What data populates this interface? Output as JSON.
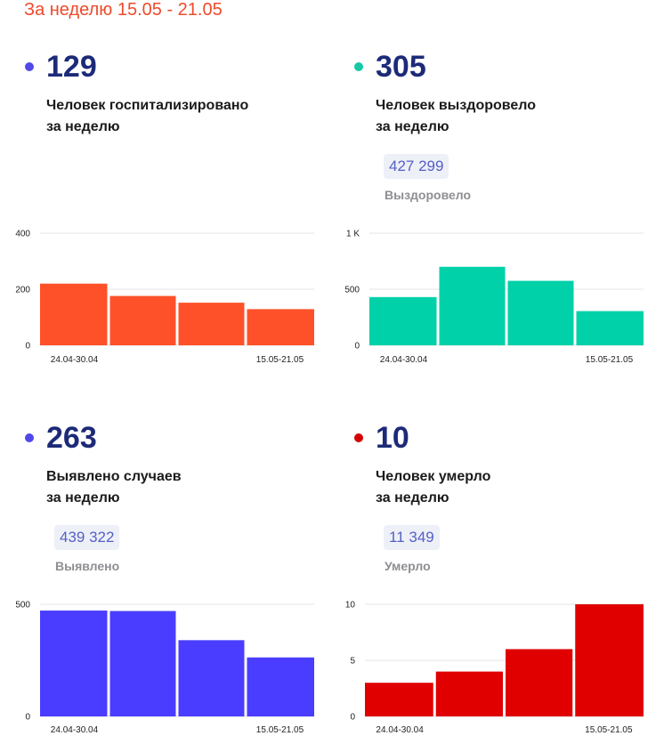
{
  "header": {
    "period_label": "За неделю 15.05 - 21.05"
  },
  "panels": [
    {
      "value": "129",
      "caption_line1": "Человек госпитализировано",
      "caption_line2": "за неделю",
      "total": "",
      "total_label": "",
      "dot_color": "#5148e8",
      "bar_color": "#ff5129"
    },
    {
      "value": "305",
      "caption_line1": "Человек выздоровело",
      "caption_line2": "за неделю",
      "total": "427 299",
      "total_label": "Выздоровело",
      "dot_color": "#13c9a6",
      "bar_color": "#00d1a8"
    },
    {
      "value": "263",
      "caption_line1": "Выявлено случаев",
      "caption_line2": "за неделю",
      "total": "439 322",
      "total_label": "Выявлено",
      "dot_color": "#5148e8",
      "bar_color": "#4a3dff"
    },
    {
      "value": "10",
      "caption_line1": "Человек умерло",
      "caption_line2": "за неделю",
      "total": "11 349",
      "total_label": "Умерло",
      "dot_color": "#d40000",
      "bar_color": "#e00000"
    }
  ],
  "chart_data": [
    {
      "type": "bar",
      "categories": [
        "24.04-30.04",
        "",
        "",
        "15.05-21.05"
      ],
      "values": [
        220,
        176,
        152,
        129
      ],
      "ylim": [
        0,
        400
      ],
      "yticks": [
        0,
        200,
        400
      ],
      "ytick_labels": [
        "0",
        "200",
        "400"
      ],
      "grid": true,
      "xlabel": "",
      "ylabel": "",
      "title": ""
    },
    {
      "type": "bar",
      "categories": [
        "24.04-30.04",
        "",
        "",
        "15.05-21.05"
      ],
      "values": [
        430,
        700,
        575,
        305
      ],
      "ylim": [
        0,
        1000
      ],
      "yticks": [
        0,
        500,
        1000
      ],
      "ytick_labels": [
        "0",
        "500",
        "1 K"
      ],
      "grid": true,
      "xlabel": "",
      "ylabel": "",
      "title": ""
    },
    {
      "type": "bar",
      "categories": [
        "24.04-30.04",
        "",
        "",
        "15.05-21.05"
      ],
      "values": [
        472,
        470,
        340,
        263
      ],
      "ylim": [
        0,
        500
      ],
      "yticks": [
        0,
        500
      ],
      "ytick_labels": [
        "0",
        "500"
      ],
      "grid": true,
      "xlabel": "",
      "ylabel": "",
      "title": ""
    },
    {
      "type": "bar",
      "categories": [
        "24.04-30.04",
        "",
        "",
        "15.05-21.05"
      ],
      "values": [
        3,
        4,
        6,
        10
      ],
      "ylim": [
        0,
        10
      ],
      "yticks": [
        0,
        5,
        10
      ],
      "ytick_labels": [
        "0",
        "5",
        "10"
      ],
      "grid": true,
      "xlabel": "",
      "ylabel": "",
      "title": ""
    }
  ]
}
